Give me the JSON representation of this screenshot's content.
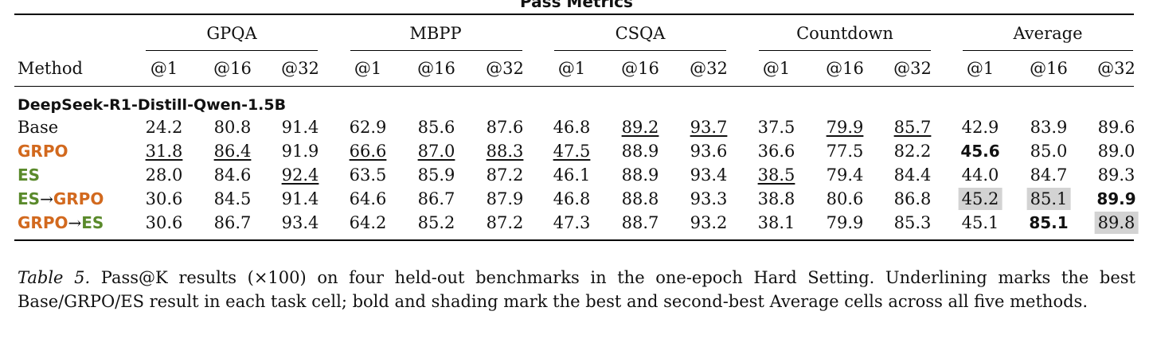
{
  "table_title": "Pass Metrics",
  "header": {
    "method": "Method",
    "groups": [
      "GPQA",
      "MBPP",
      "CSQA",
      "Countdown",
      "Average"
    ],
    "subcols": [
      "@1",
      "@16",
      "@32"
    ]
  },
  "section_label": "DeepSeek-R1-Distill-Qwen-1.5B",
  "rows": [
    {
      "method": "Base",
      "cells": [
        "24.2",
        "80.8",
        "91.4",
        "62.9",
        "85.6",
        "87.6",
        "46.8",
        "89.2",
        "93.7",
        "37.5",
        "79.9",
        "85.7",
        "42.9",
        "83.9",
        "89.6"
      ]
    },
    {
      "method": "GRPO",
      "cells": [
        "31.8",
        "86.4",
        "91.9",
        "66.6",
        "87.0",
        "88.3",
        "47.5",
        "88.9",
        "93.6",
        "36.6",
        "77.5",
        "82.2",
        "45.6",
        "85.0",
        "89.0"
      ]
    },
    {
      "method": "ES",
      "cells": [
        "28.0",
        "84.6",
        "92.4",
        "63.5",
        "85.9",
        "87.2",
        "46.1",
        "88.9",
        "93.4",
        "38.5",
        "79.4",
        "84.4",
        "44.0",
        "84.7",
        "89.3"
      ]
    },
    {
      "method_a": "ES",
      "method_arrow": "→",
      "method_b": "GRPO",
      "cells": [
        "30.6",
        "84.5",
        "91.4",
        "64.6",
        "86.7",
        "87.9",
        "46.8",
        "88.8",
        "93.3",
        "38.8",
        "80.6",
        "86.8",
        "45.2",
        "85.1",
        "89.9"
      ]
    },
    {
      "method_a": "GRPO",
      "method_arrow": "→",
      "method_b": "ES",
      "cells": [
        "30.6",
        "86.7",
        "93.4",
        "64.2",
        "85.2",
        "87.2",
        "47.3",
        "88.7",
        "93.2",
        "38.1",
        "79.9",
        "85.3",
        "45.1",
        "85.1",
        "89.8"
      ]
    }
  ],
  "caption": {
    "label": "Table 5.",
    "text": "Pass@K results (×100) on four held-out benchmarks in the one-epoch Hard Setting. Underlining marks the best Base/GRPO/ES result in each task cell; bold and shading mark the best and second-best Average cells across all five methods."
  },
  "colors": {
    "grpo": "#d2691e",
    "es": "#5a8a2b",
    "shade": "#d3d3d3"
  }
}
